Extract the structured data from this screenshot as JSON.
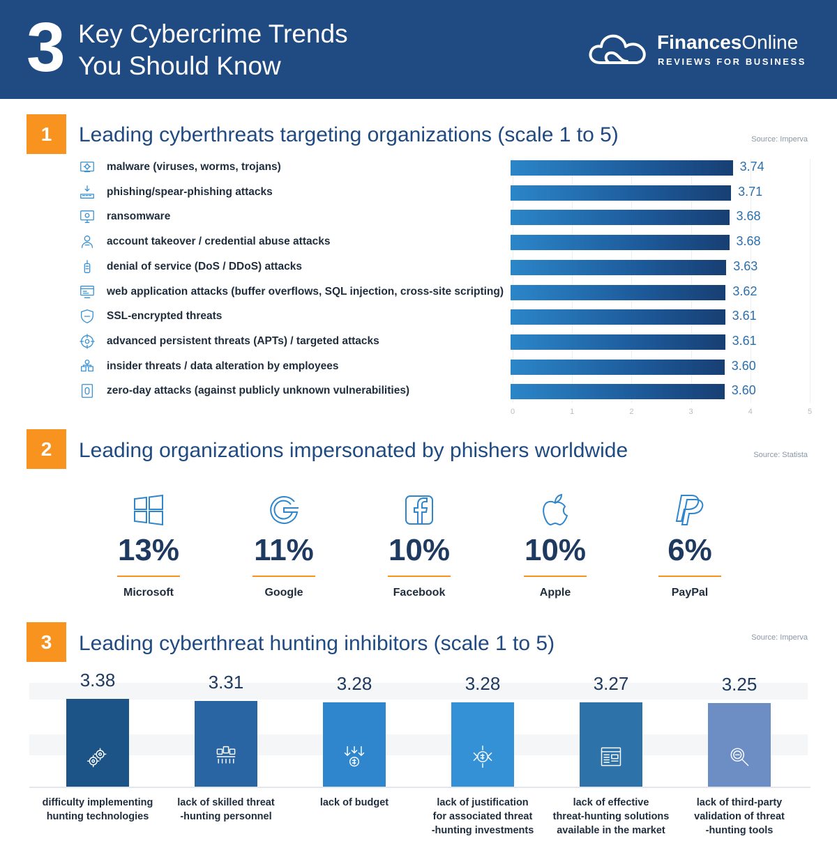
{
  "header": {
    "number": "3",
    "title_line1": "Key Cybercrime Trends",
    "title_line2": "You Should Know",
    "brand_bold": "Finances",
    "brand_light": "Online",
    "brand_tagline": "REVIEWS FOR BUSINESS"
  },
  "section1": {
    "badge": "1",
    "title": "Leading cyberthreats targeting organizations (scale 1 to 5)",
    "source": "Source: Imperva",
    "icons": [
      "malware-icon",
      "phishing-icon",
      "ransomware-icon",
      "account-takeover-icon",
      "dos-icon",
      "web-app-icon",
      "ssl-icon",
      "apt-icon",
      "insider-icon",
      "zero-day-icon"
    ]
  },
  "section2": {
    "badge": "2",
    "title": "Leading organizations impersonated by phishers worldwide",
    "source": "Source: Statista",
    "orgs": [
      {
        "name": "Microsoft",
        "pct": "13%",
        "icon": "windows-icon"
      },
      {
        "name": "Google",
        "pct": "11%",
        "icon": "google-icon"
      },
      {
        "name": "Facebook",
        "pct": "10%",
        "icon": "facebook-icon"
      },
      {
        "name": "Apple",
        "pct": "10%",
        "icon": "apple-icon"
      },
      {
        "name": "PayPal",
        "pct": "6%",
        "icon": "paypal-icon"
      }
    ]
  },
  "section3": {
    "badge": "3",
    "title": "Leading cyberthreat hunting inhibitors (scale 1 to 5)",
    "source": "Source: Imperva",
    "icons": [
      "gears-icon",
      "personnel-icon",
      "budget-icon",
      "investment-icon",
      "solutions-icon",
      "validation-icon"
    ]
  },
  "colors": {
    "header_bg": "#1f4a82",
    "accent_orange": "#f7931e",
    "title_blue": "#1f4a82",
    "value_blue": "#2a6fae",
    "s3_bar_colors": [
      "#1d5487",
      "#2a65a3",
      "#2f86cc",
      "#3591d6",
      "#2e72aa",
      "#6c8ec5"
    ]
  },
  "chart_data": [
    {
      "type": "bar",
      "orientation": "horizontal",
      "title": "Leading cyberthreats targeting organizations (scale 1 to 5)",
      "categories": [
        "malware (viruses, worms, trojans)",
        "phishing/spear-phishing attacks",
        "ransomware",
        "account takeover / credential abuse attacks",
        "denial of service (DoS / DDoS) attacks",
        "web application attacks (buffer overflows, SQL injection, cross-site scripting)",
        "SSL-encrypted threats",
        "advanced persistent threats (APTs) / targeted attacks",
        "insider threats / data alteration by employees",
        "zero-day attacks (against publicly unknown vulnerabilities)"
      ],
      "values": [
        3.74,
        3.71,
        3.68,
        3.68,
        3.63,
        3.62,
        3.61,
        3.61,
        3.6,
        3.6
      ],
      "value_labels": [
        "3.74",
        "3.71",
        "3.68",
        "3.68",
        "3.63",
        "3.62",
        "3.61",
        "3.61",
        "3.60",
        "3.60"
      ],
      "xlim": [
        0,
        5
      ],
      "ticks": [
        "0",
        "1",
        "2",
        "3",
        "4",
        "5"
      ],
      "grid": true
    },
    {
      "type": "bar",
      "orientation": "vertical",
      "title": "Leading cyberthreat hunting inhibitors (scale 1 to 5)",
      "categories": [
        "difficulty implementing hunting technologies",
        "lack of skilled threat -hunting personnel",
        "lack of budget",
        "lack of justification for associated threat -hunting investments",
        "lack of effective threat-hunting solutions available in the market",
        "lack of third-party validation of threat -hunting tools"
      ],
      "label_lines": [
        [
          "difficulty implementing",
          "hunting technologies"
        ],
        [
          "lack of skilled threat",
          "-hunting personnel"
        ],
        [
          "lack of budget"
        ],
        [
          "lack of justification",
          "for associated threat",
          "-hunting investments"
        ],
        [
          "lack of effective",
          "threat-hunting solutions",
          "available in the market"
        ],
        [
          "lack of third-party",
          "validation of threat",
          "-hunting tools"
        ]
      ],
      "values": [
        3.38,
        3.31,
        3.28,
        3.28,
        3.27,
        3.25
      ],
      "value_labels": [
        "3.38",
        "3.31",
        "3.28",
        "3.28",
        "3.27",
        "3.25"
      ],
      "ylim": [
        0,
        5
      ]
    }
  ]
}
